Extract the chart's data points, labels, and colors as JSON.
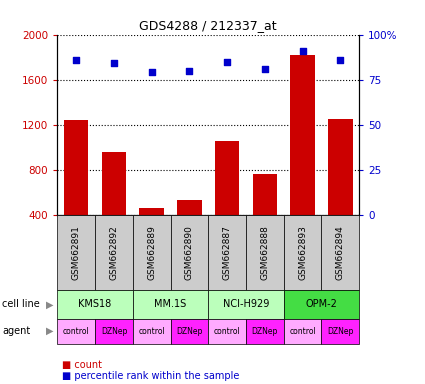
{
  "title": "GDS4288 / 212337_at",
  "samples": [
    "GSM662891",
    "GSM662892",
    "GSM662889",
    "GSM662890",
    "GSM662887",
    "GSM662888",
    "GSM662893",
    "GSM662894"
  ],
  "counts": [
    1240,
    960,
    460,
    530,
    1060,
    760,
    1820,
    1250
  ],
  "percentile_ranks": [
    86,
    84,
    79,
    80,
    85,
    81,
    91,
    86
  ],
  "cell_lines": [
    {
      "label": "KMS18",
      "start": 0,
      "end": 2
    },
    {
      "label": "MM.1S",
      "start": 2,
      "end": 4
    },
    {
      "label": "NCI-H929",
      "start": 4,
      "end": 6
    },
    {
      "label": "OPM-2",
      "start": 6,
      "end": 8
    }
  ],
  "cell_line_colors": {
    "KMS18": "#bbffbb",
    "MM.1S": "#bbffbb",
    "NCI-H929": "#bbffbb",
    "OPM-2": "#44dd44"
  },
  "agents": [
    "control",
    "DZNep",
    "control",
    "DZNep",
    "control",
    "DZNep",
    "control",
    "DZNep"
  ],
  "agent_colors": {
    "control": "#ffaaff",
    "DZNep": "#ff22ff"
  },
  "ylim_left": [
    400,
    2000
  ],
  "ylim_right": [
    0,
    100
  ],
  "yticks_left": [
    400,
    800,
    1200,
    1600,
    2000
  ],
  "yticks_right": [
    0,
    25,
    50,
    75,
    100
  ],
  "bar_color": "#cc0000",
  "dot_color": "#0000cc",
  "sample_bg_color": "#cccccc",
  "legend_count_color": "#cc0000",
  "legend_percentile_color": "#0000cc"
}
